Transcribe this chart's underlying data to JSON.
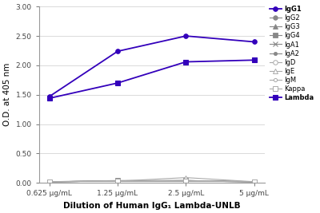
{
  "x_labels": [
    "0.625 μg/mL",
    "1.25 μg/mL",
    "2.5 μg/mL",
    "5 μg/mL"
  ],
  "x_values": [
    0,
    1,
    2,
    3
  ],
  "series_order": [
    "IgG1",
    "IgG2",
    "IgG3",
    "IgG4",
    "IgA1",
    "IgA2",
    "IgD",
    "IgE",
    "IgM",
    "Kappa",
    "Lambda"
  ],
  "series": {
    "IgG1": {
      "values": [
        1.47,
        2.24,
        2.5,
        2.4
      ],
      "color": "#3300BB",
      "marker": "o",
      "markersize": 4,
      "linewidth": 1.3,
      "filled": true,
      "mew": 0.8
    },
    "IgG2": {
      "values": [
        0.02,
        0.03,
        0.03,
        0.02
      ],
      "color": "#888888",
      "marker": "o",
      "markersize": 4,
      "linewidth": 0.8,
      "filled": true,
      "mew": 0.6
    },
    "IgG3": {
      "values": [
        0.02,
        0.03,
        0.03,
        0.02
      ],
      "color": "#888888",
      "marker": "^",
      "markersize": 4,
      "linewidth": 0.8,
      "filled": true,
      "mew": 0.6
    },
    "IgG4": {
      "values": [
        0.02,
        0.04,
        0.04,
        0.02
      ],
      "color": "#888888",
      "marker": "s",
      "markersize": 4,
      "linewidth": 0.8,
      "filled": true,
      "mew": 0.6
    },
    "IgA1": {
      "values": [
        0.02,
        0.03,
        0.04,
        0.02
      ],
      "color": "#888888",
      "marker": "x",
      "markersize": 4,
      "linewidth": 0.8,
      "filled": true,
      "mew": 0.8
    },
    "IgA2": {
      "values": [
        0.02,
        0.03,
        0.03,
        0.02
      ],
      "color": "#888888",
      "marker": "o",
      "markersize": 3,
      "linewidth": 0.8,
      "filled": true,
      "mew": 0.6
    },
    "IgD": {
      "values": [
        0.02,
        0.03,
        0.04,
        0.02
      ],
      "color": "#aaaaaa",
      "marker": "o",
      "markersize": 4,
      "linewidth": 0.8,
      "filled": false,
      "mew": 0.7
    },
    "IgE": {
      "values": [
        0.02,
        0.03,
        0.09,
        0.02
      ],
      "color": "#aaaaaa",
      "marker": "^",
      "markersize": 4,
      "linewidth": 0.8,
      "filled": false,
      "mew": 0.7
    },
    "IgM": {
      "values": [
        0.02,
        0.03,
        0.03,
        0.02
      ],
      "color": "#aaaaaa",
      "marker": "o",
      "markersize": 3,
      "linewidth": 0.8,
      "filled": false,
      "mew": 0.7
    },
    "Kappa": {
      "values": [
        0.02,
        0.03,
        0.03,
        0.02
      ],
      "color": "#aaaaaa",
      "marker": "s",
      "markersize": 4,
      "linewidth": 0.8,
      "filled": false,
      "mew": 0.7
    },
    "Lambda": {
      "values": [
        1.44,
        1.7,
        2.06,
        2.09
      ],
      "color": "#3300BB",
      "marker": "s",
      "markersize": 4,
      "linewidth": 1.3,
      "filled": true,
      "mew": 0.8
    }
  },
  "ylabel": "O.D. at 405 nm",
  "xlabel": "Dilution of Human IgG₁ Lambda-UNLB",
  "ylim": [
    0.0,
    3.0
  ],
  "yticks": [
    0.0,
    0.5,
    1.0,
    1.5,
    2.0,
    2.5,
    3.0
  ],
  "ytick_labels": [
    "0.00",
    "0.50",
    "1.00",
    "1.50",
    "2.00",
    "2.50",
    "3.00"
  ],
  "bold_series": [
    "IgG1",
    "Lambda"
  ],
  "background_color": "#ffffff",
  "grid_color": "#cccccc",
  "legend_fontsize": 6.0,
  "axis_label_fontsize": 7.5,
  "tick_fontsize": 6.5
}
